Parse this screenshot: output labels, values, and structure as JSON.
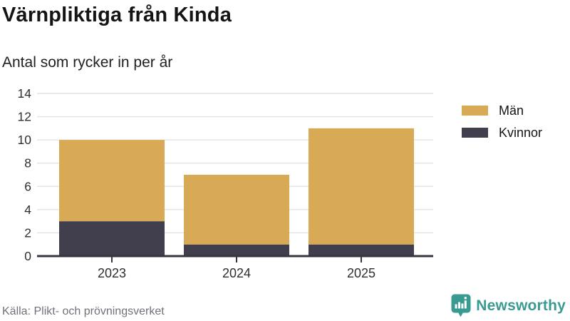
{
  "chart_data": {
    "type": "bar",
    "stacked": true,
    "title": "Värnpliktiga från Kinda",
    "subtitle": "Antal som rycker in per år",
    "categories": [
      "2023",
      "2024",
      "2025"
    ],
    "series": [
      {
        "name": "Män",
        "color": "#d9aa55",
        "values": [
          7,
          6,
          10
        ]
      },
      {
        "name": "Kvinnor",
        "color": "#413f4e",
        "values": [
          3,
          1,
          1
        ]
      }
    ],
    "xlabel": "",
    "ylabel": "",
    "ylim": [
      0,
      14
    ],
    "ytick_step": 2,
    "grid": true,
    "legend_position": "right"
  },
  "footer": {
    "source": "Källa: Plikt- och prövningsverket",
    "brand_name": "Newsworthy",
    "brand_color": "#399a92"
  },
  "colors": {
    "men": "#d9aa55",
    "women": "#413f4e",
    "grid": "#e3e3e3",
    "axis": "#37353f",
    "tick_text": "#2e2e2e",
    "title_text": "#141414",
    "muted_text": "#71717a",
    "brand_teal": "#399a92"
  }
}
